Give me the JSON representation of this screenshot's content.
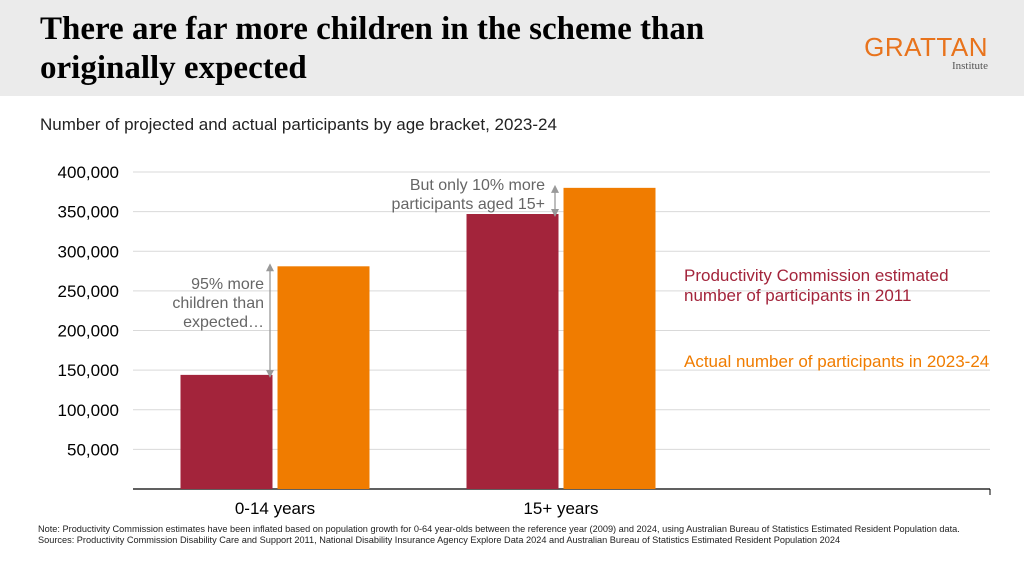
{
  "header": {
    "title": "There are far more children in the scheme than originally expected",
    "logo_main": "GRATTAN",
    "logo_sub": "Institute"
  },
  "colors": {
    "projected": "#a3243b",
    "actual": "#f07c00",
    "header_bg": "#ebebeb",
    "annotation": "#666666"
  },
  "chart_data": {
    "type": "bar",
    "title": "Number of projected and actual participants by age bracket, 2023-24",
    "categories": [
      "0-14 years",
      "15+ years"
    ],
    "series": [
      {
        "name": "Productivity Commission estimated number of participants in 2011",
        "values": [
          144000,
          347000
        ]
      },
      {
        "name": "Actual number of participants in 2023-24",
        "values": [
          281000,
          380000
        ]
      }
    ],
    "ylim": [
      0,
      400000
    ],
    "yticks": [
      50000,
      100000,
      150000,
      200000,
      250000,
      300000,
      350000,
      400000
    ],
    "ytick_labels": [
      "50,000",
      "100,000",
      "150,000",
      "200,000",
      "250,000",
      "300,000",
      "350,000",
      "400,000"
    ],
    "grid": true,
    "legend_position": "right",
    "annotations": [
      {
        "category": "0-14 years",
        "lines": [
          "95% more",
          "children than",
          "expected…"
        ]
      },
      {
        "category": "15+ years",
        "lines": [
          "But only 10% more",
          "participants aged 15+"
        ]
      }
    ]
  },
  "footer": {
    "note": "Note: Productivity Commission estimates have been inflated based on population growth for 0-64 year-olds between the reference year (2009) and 2024, using Australian Bureau of Statistics Estimated Resident Population data.",
    "sources": "Sources: Productivity Commission Disability Care and Support 2011, National Disability Insurance Agency Explore Data 2024 and Australian Bureau of Statistics Estimated Resident Population 2024"
  }
}
